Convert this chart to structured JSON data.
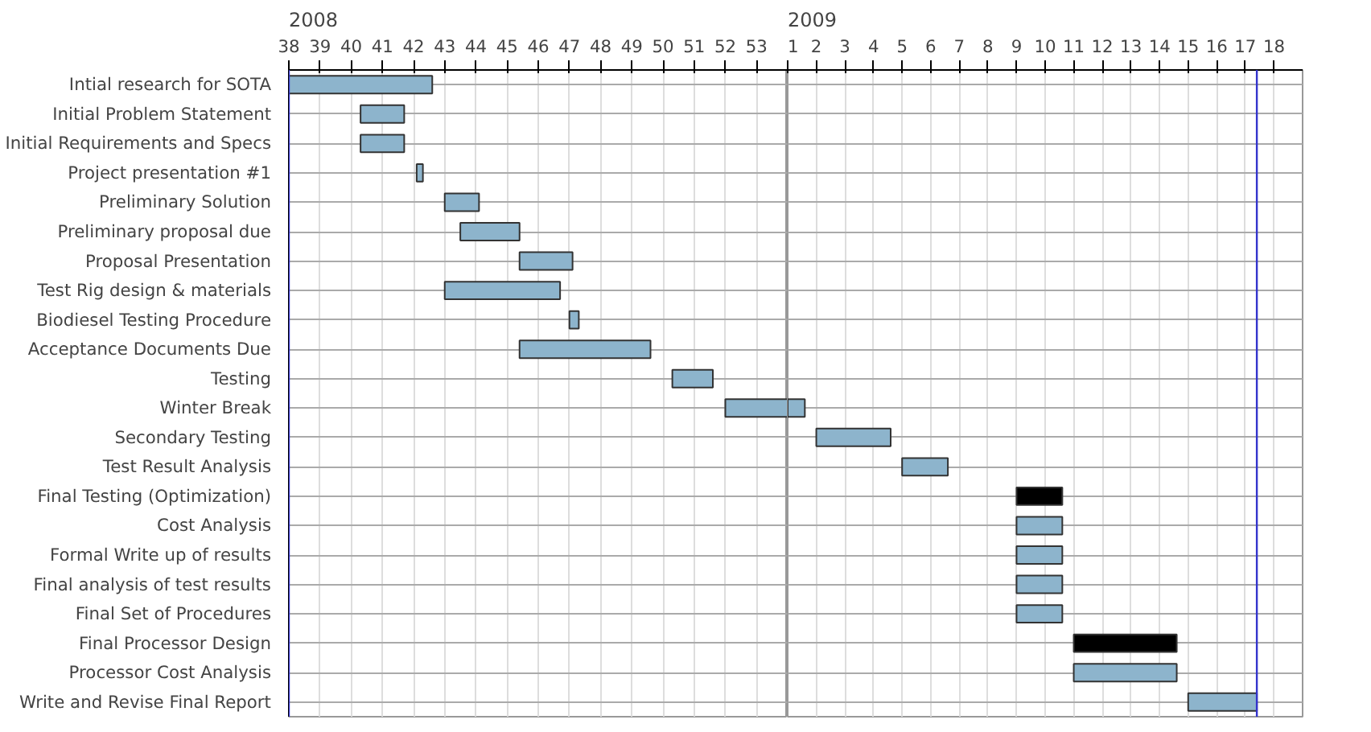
{
  "chart_data": [
    {
      "type": "bar",
      "orientation": "horizontal",
      "grid": true,
      "title": "2008",
      "categories": [
        "Intial research for SOTA",
        "Initial Problem Statement",
        "Initial Requirements and Specs",
        "Project presentation #1",
        "Preliminary Solution",
        "Preliminary proposal due",
        "Proposal Presentation",
        "Test Rig design & materials",
        "Biodiesel Testing Procedure",
        "Acceptance Documents Due",
        "Testing",
        "Winter Break",
        "Secondary Testing",
        "Test Result Analysis",
        "Final Testing (Optimization)",
        "Cost Analysis",
        "Formal Write up of results",
        "Final analysis of test results",
        "Final Set of Procedures",
        "Final Processor Design",
        "Processor Cost Analysis",
        "Write and Revise Final Report"
      ],
      "base": [
        38.0,
        40.3,
        40.3,
        42.1,
        43.0,
        43.5,
        45.4,
        43.0,
        47.0,
        45.4,
        50.3,
        52.0,
        null,
        null,
        null,
        null,
        null,
        null,
        null,
        null,
        null,
        null
      ],
      "values": [
        4.6,
        1.4,
        1.4,
        0.2,
        1.1,
        1.9,
        1.7,
        3.7,
        0.3,
        4.2,
        1.3,
        2.0,
        null,
        null,
        null,
        null,
        null,
        null,
        null,
        null,
        null,
        null
      ],
      "color": "#8db4cc",
      "xlim": [
        38,
        54
      ],
      "xticks": [
        38,
        39,
        40,
        41,
        42,
        43,
        44,
        45,
        46,
        47,
        48,
        49,
        50,
        51,
        52,
        53
      ],
      "ref_lines": [
        {
          "axis": "x",
          "value": 38.0,
          "color": "#3333cc"
        }
      ]
    },
    {
      "type": "bar",
      "orientation": "horizontal",
      "grid": true,
      "title": "2009",
      "tick_labels": "x",
      "categories": [
        "Intial research for SOTA",
        "Initial Problem Statement",
        "Initial Requirements and Specs",
        "Project presentation #1",
        "Preliminary Solution",
        "Preliminary proposal due",
        "Proposal Presentation",
        "Test Rig design & materials",
        "Biodiesel Testing Procedure",
        "Acceptance Documents Due",
        "Testing",
        "Winter Break",
        "Secondary Testing",
        "Test Result Analysis",
        "Final Testing (Optimization)",
        "Cost Analysis",
        "Formal Write up of results",
        "Final analysis of test results",
        "Final Set of Procedures",
        "Final Processor Design",
        "Processor Cost Analysis",
        "Write and Revise Final Report"
      ],
      "base": [
        null,
        null,
        null,
        null,
        null,
        null,
        null,
        null,
        null,
        null,
        null,
        1.0,
        2.0,
        5.0,
        9.0,
        9.0,
        9.0,
        9.0,
        9.0,
        11.0,
        11.0,
        15.0
      ],
      "values": [
        null,
        null,
        null,
        null,
        null,
        null,
        null,
        null,
        null,
        null,
        null,
        0.6,
        2.6,
        1.6,
        1.6,
        1.6,
        1.6,
        1.6,
        1.6,
        3.6,
        3.6,
        2.4
      ],
      "colors": [
        "#8db4cc",
        "#8db4cc",
        "#8db4cc",
        "#8db4cc",
        "#8db4cc",
        "#8db4cc",
        "#8db4cc",
        "#8db4cc",
        "#8db4cc",
        "#8db4cc",
        "#8db4cc",
        "#8db4cc",
        "#8db4cc",
        "#8db4cc",
        "#000000",
        "#8db4cc",
        "#8db4cc",
        "#8db4cc",
        "#8db4cc",
        "#000000",
        "#8db4cc",
        "#8db4cc"
      ],
      "xlim": [
        1,
        19
      ],
      "xticks": [
        1,
        2,
        3,
        4,
        5,
        6,
        7,
        8,
        9,
        10,
        11,
        12,
        13,
        14,
        15,
        16,
        17,
        18
      ],
      "ref_lines": [
        {
          "axis": "x",
          "value": 17.4,
          "color": "#3333cc"
        }
      ]
    }
  ]
}
